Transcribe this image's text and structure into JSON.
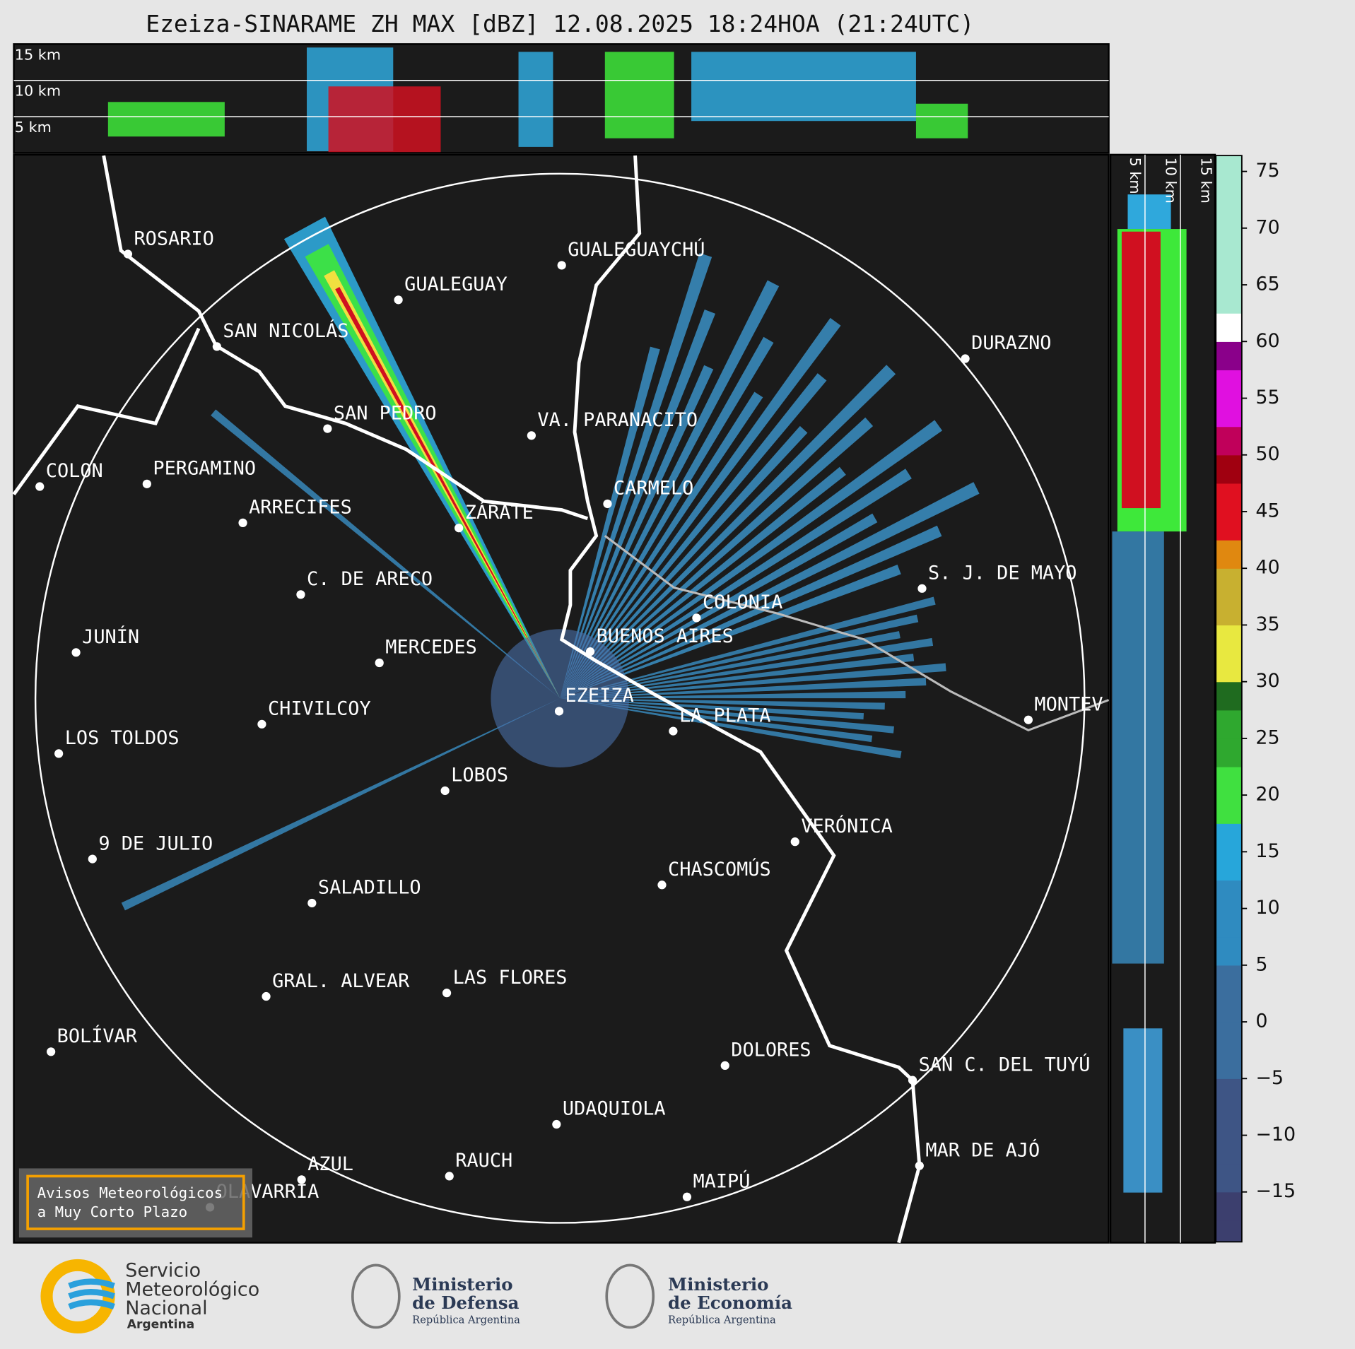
{
  "title": "Ezeiza-SINARAME ZH MAX [dBZ] 12.08.2025 18:24HOA (21:24UTC)",
  "top_panel": {
    "heights": [
      "15 km",
      "10 km",
      "5 km"
    ]
  },
  "side_panel": {
    "heights": [
      "5 km",
      "10 km",
      "15 km"
    ]
  },
  "cities": [
    {
      "name": "ROSARIO"
    },
    {
      "name": "GUALEGUAYCHÚ"
    },
    {
      "name": "GUALEGUAY"
    },
    {
      "name": "SAN NICOLÁS"
    },
    {
      "name": "DURAZNO"
    },
    {
      "name": "SAN PEDRO"
    },
    {
      "name": "VA. PARANACITO"
    },
    {
      "name": "COLON"
    },
    {
      "name": "PERGAMINO"
    },
    {
      "name": "CARMELO"
    },
    {
      "name": "ARRECIFES"
    },
    {
      "name": "ZÁRATE"
    },
    {
      "name": "S. J. DE MAYO"
    },
    {
      "name": "C. DE ARECO"
    },
    {
      "name": "COLONIA"
    },
    {
      "name": "BUENOS AIRES"
    },
    {
      "name": "JUNÍN"
    },
    {
      "name": "MERCEDES"
    },
    {
      "name": "MONTEV"
    },
    {
      "name": "EZEIZA"
    },
    {
      "name": "CHIVILCOY"
    },
    {
      "name": "LA PLATA"
    },
    {
      "name": "LOS TOLDOS"
    },
    {
      "name": "LOBOS"
    },
    {
      "name": "VERÓNICA"
    },
    {
      "name": "9 DE JULIO"
    },
    {
      "name": "CHASCOMÚS"
    },
    {
      "name": "SALADILLO"
    },
    {
      "name": "GRAL. ALVEAR"
    },
    {
      "name": "LAS FLORES"
    },
    {
      "name": "BOLÍVAR"
    },
    {
      "name": "DOLORES"
    },
    {
      "name": "SAN C. DEL TUYÚ"
    },
    {
      "name": "UDAQUIOLA"
    },
    {
      "name": "MAR DE AJÓ"
    },
    {
      "name": "RAUCH"
    },
    {
      "name": "AZUL"
    },
    {
      "name": "OLAVARRÍA"
    },
    {
      "name": "MAIPÚ"
    }
  ],
  "warning_box": {
    "lines": [
      "Avisos Meteorológicos",
      "a Muy Corto Plazo"
    ]
  },
  "colorbar": {
    "vlim": [
      -19.4,
      76.4
    ],
    "ticks": [
      {
        "value": 75,
        "label": "75"
      },
      {
        "value": 70,
        "label": "70"
      },
      {
        "value": 65,
        "label": "65"
      },
      {
        "value": 60,
        "label": "60"
      },
      {
        "value": 55,
        "label": "55"
      },
      {
        "value": 50,
        "label": "50"
      },
      {
        "value": 45,
        "label": "45"
      },
      {
        "value": 40,
        "label": "40"
      },
      {
        "value": 35,
        "label": "35"
      },
      {
        "value": 30,
        "label": "30"
      },
      {
        "value": 25,
        "label": "25"
      },
      {
        "value": 20,
        "label": "20"
      },
      {
        "value": 15,
        "label": "15"
      },
      {
        "value": 10,
        "label": "10"
      },
      {
        "value": 5,
        "label": "5"
      },
      {
        "value": 0,
        "label": "0"
      },
      {
        "value": -5,
        "label": "−5"
      },
      {
        "value": -10,
        "label": "−10"
      },
      {
        "value": -15,
        "label": "−15"
      }
    ]
  },
  "footer": {
    "smn": [
      "Servicio",
      "Meteorológico",
      "Nacional",
      "Argentina"
    ],
    "defensa": [
      "Ministerio",
      "de Defensa",
      "República Argentina"
    ],
    "economia": [
      "Ministerio",
      "de Economía",
      "República Argentina"
    ]
  }
}
